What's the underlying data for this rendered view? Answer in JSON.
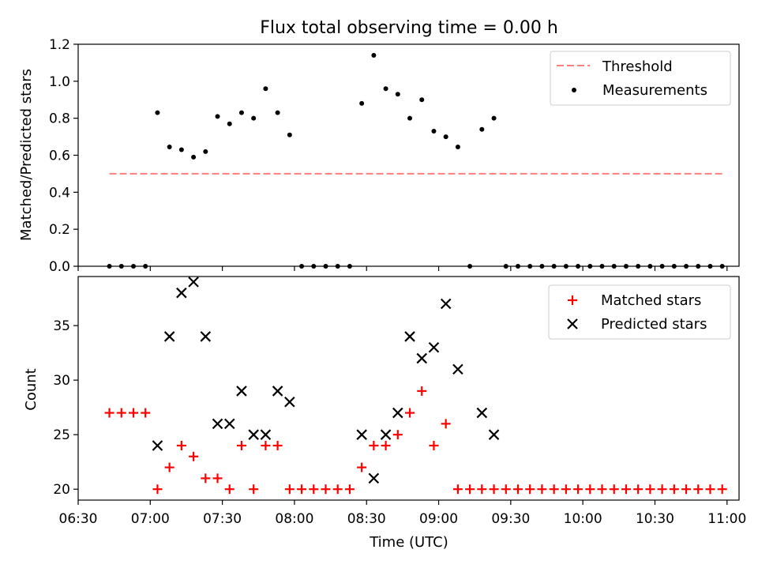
{
  "chart_data": [
    {
      "type": "scatter",
      "title": "Flux total observing time = 0.00 h",
      "xlabel": "",
      "ylabel": "Matched/Predicted stars",
      "ylim": [
        0,
        1.2
      ],
      "yticks": [
        "0.0",
        "0.2",
        "0.4",
        "0.6",
        "0.8",
        "1.0",
        "1.2"
      ],
      "legend_position": "top-right",
      "threshold": {
        "name": "Threshold",
        "value": 0.5,
        "x_start": "06:43",
        "x_end": "10:58",
        "color": "#ff7f7f",
        "style": "dashed"
      },
      "series": [
        {
          "name": "Measurements",
          "color": "#000000",
          "marker": "dot",
          "x": [
            "06:43",
            "06:48",
            "06:53",
            "06:58",
            "07:03",
            "07:08",
            "07:13",
            "07:18",
            "07:23",
            "07:28",
            "07:33",
            "07:38",
            "07:43",
            "07:48",
            "07:53",
            "07:58",
            "08:03",
            "08:08",
            "08:13",
            "08:18",
            "08:23",
            "08:28",
            "08:33",
            "08:38",
            "08:43",
            "08:48",
            "08:53",
            "08:58",
            "09:03",
            "09:08",
            "09:13",
            "09:18",
            "09:23",
            "09:28",
            "09:33",
            "09:38",
            "09:43",
            "09:48",
            "09:53",
            "09:58",
            "10:03",
            "10:08",
            "10:13",
            "10:18",
            "10:23",
            "10:28",
            "10:33",
            "10:38",
            "10:43",
            "10:48",
            "10:53",
            "10:58"
          ],
          "y": [
            0,
            0,
            0,
            0,
            0.83,
            0.645,
            0.63,
            0.59,
            0.62,
            0.81,
            0.77,
            0.83,
            0.8,
            0.96,
            0.83,
            0.71,
            0,
            0,
            0,
            0,
            0,
            0.88,
            1.14,
            0.96,
            0.93,
            0.8,
            0.9,
            0.73,
            0.7,
            0.645,
            0,
            0.74,
            0.8,
            0,
            0,
            0,
            0,
            0,
            0,
            0,
            0,
            0,
            0,
            0,
            0,
            0,
            0,
            0,
            0,
            0,
            0,
            0
          ]
        }
      ]
    },
    {
      "type": "scatter",
      "title": "",
      "xlabel": "Time (UTC)",
      "ylabel": "Count",
      "ylim": [
        19,
        39.5
      ],
      "yticks": [
        "20",
        "25",
        "30",
        "35"
      ],
      "xticks": [
        "06:30",
        "07:00",
        "07:30",
        "08:00",
        "08:30",
        "09:00",
        "09:30",
        "10:00",
        "10:30",
        "11:00"
      ],
      "xlim": [
        "06:30",
        "11:05"
      ],
      "legend_position": "top-right",
      "series": [
        {
          "name": "Matched stars",
          "color": "#ff0000",
          "marker": "plus",
          "x": [
            "06:43",
            "06:48",
            "06:53",
            "06:58",
            "07:03",
            "07:08",
            "07:13",
            "07:18",
            "07:23",
            "07:28",
            "07:33",
            "07:38",
            "07:43",
            "07:48",
            "07:53",
            "07:58",
            "08:03",
            "08:08",
            "08:13",
            "08:18",
            "08:23",
            "08:28",
            "08:33",
            "08:38",
            "08:43",
            "08:48",
            "08:53",
            "08:58",
            "09:03",
            "09:08",
            "09:13",
            "09:18",
            "09:23",
            "09:28",
            "09:33",
            "09:38",
            "09:43",
            "09:48",
            "09:53",
            "09:58",
            "10:03",
            "10:08",
            "10:13",
            "10:18",
            "10:23",
            "10:28",
            "10:33",
            "10:38",
            "10:43",
            "10:48",
            "10:53",
            "10:58"
          ],
          "y": [
            27,
            27,
            27,
            27,
            20,
            22,
            24,
            23,
            21,
            21,
            20,
            24,
            20,
            24,
            24,
            20,
            20,
            20,
            20,
            20,
            20,
            22,
            24,
            24,
            25,
            27,
            29,
            24,
            26,
            20,
            20,
            20,
            20,
            20,
            20,
            20,
            20,
            20,
            20,
            20,
            20,
            20,
            20,
            20,
            20,
            20,
            20,
            20,
            20,
            20,
            20,
            20
          ]
        },
        {
          "name": "Predicted stars",
          "color": "#000000",
          "marker": "x",
          "x": [
            "07:03",
            "07:08",
            "07:13",
            "07:18",
            "07:23",
            "07:28",
            "07:33",
            "07:38",
            "07:43",
            "07:48",
            "07:53",
            "07:58",
            "08:28",
            "08:33",
            "08:38",
            "08:43",
            "08:48",
            "08:53",
            "08:58",
            "09:03",
            "09:08",
            "09:18",
            "09:23"
          ],
          "y": [
            24,
            34,
            38,
            39,
            34,
            26,
            26,
            29,
            25,
            25,
            29,
            28,
            25,
            21,
            25,
            27,
            34,
            32,
            33,
            37,
            31,
            27,
            25
          ]
        }
      ]
    }
  ]
}
